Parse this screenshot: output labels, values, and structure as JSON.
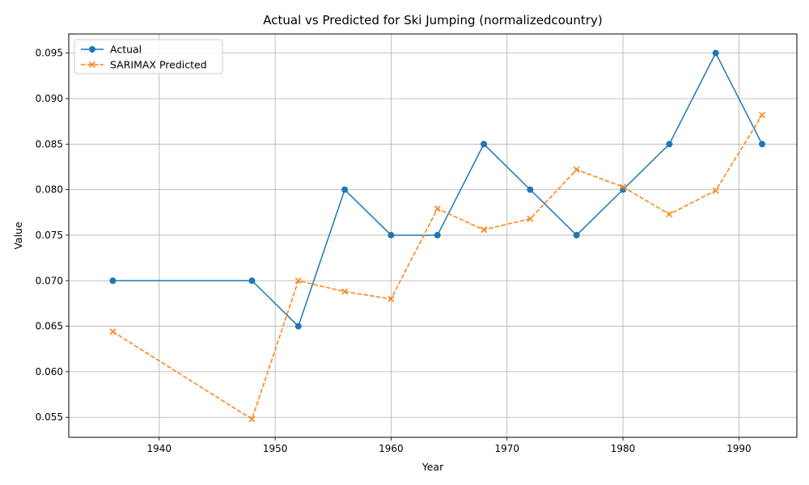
{
  "chart_data": {
    "type": "line",
    "title": "Actual vs Predicted for Ski Jumping (normalizedcountry)",
    "xlabel": "Year",
    "ylabel": "Value",
    "xlim": [
      1932.2,
      1995.0
    ],
    "ylim": [
      0.0528,
      0.0971
    ],
    "x_ticks": [
      1940,
      1950,
      1960,
      1970,
      1980,
      1990
    ],
    "x_tick_labels": [
      "1940",
      "1950",
      "1960",
      "1970",
      "1980",
      "1990"
    ],
    "y_ticks": [
      0.055,
      0.06,
      0.065,
      0.07,
      0.075,
      0.08,
      0.085,
      0.09,
      0.095
    ],
    "y_tick_labels": [
      "0.055",
      "0.060",
      "0.065",
      "0.070",
      "0.075",
      "0.080",
      "0.085",
      "0.090",
      "0.095"
    ],
    "grid": true,
    "legend_position": "upper-left",
    "x": [
      1936,
      1948,
      1952,
      1956,
      1960,
      1964,
      1968,
      1972,
      1976,
      1980,
      1984,
      1988,
      1992
    ],
    "series": [
      {
        "name": "Actual",
        "color": "#1f77b4",
        "marker": "circle",
        "linestyle": "solid",
        "values": [
          0.07,
          0.07,
          0.065,
          0.08,
          0.075,
          0.075,
          0.085,
          0.08,
          0.075,
          0.08,
          0.085,
          0.095,
          0.085
        ]
      },
      {
        "name": "SARIMAX Predicted",
        "color": "#ff7f0e",
        "marker": "x",
        "linestyle": "dashed",
        "values": [
          0.0644,
          0.0548,
          0.07,
          0.0688,
          0.068,
          0.0779,
          0.0756,
          0.0768,
          0.0822,
          0.0803,
          0.0773,
          0.0799,
          0.0882
        ]
      }
    ]
  }
}
